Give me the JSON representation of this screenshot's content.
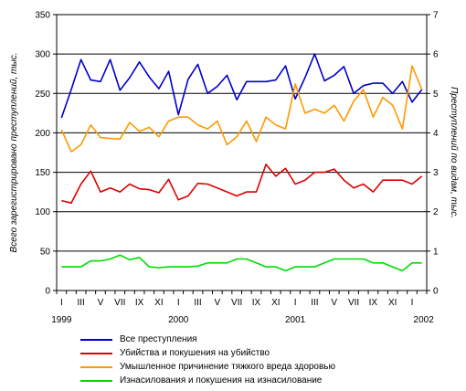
{
  "chart_data": {
    "type": "line",
    "left_axis": {
      "label": "Всего зарегистрировано преступлений, тыс.",
      "ylim": [
        0,
        350
      ],
      "ticks": [
        0,
        50,
        100,
        150,
        200,
        250,
        300,
        350
      ]
    },
    "right_axis": {
      "label": "Преступлений по видам, тыс.",
      "ylim": [
        0,
        7
      ],
      "ticks": [
        0,
        1,
        2,
        3,
        4,
        5,
        6,
        7
      ]
    },
    "x_month_labels": [
      "I",
      "",
      "III",
      "",
      "V",
      "",
      "VII",
      "",
      "IX",
      "",
      "XI",
      "",
      "I",
      "",
      "III",
      "",
      "V",
      "",
      "VII",
      "",
      "IX",
      "",
      "XI",
      "",
      "I",
      "",
      "III",
      "",
      "V",
      "",
      "VII",
      "",
      "IX",
      "",
      "XI",
      "",
      "I",
      ""
    ],
    "x_year_labels": [
      {
        "index": 0,
        "text": "1999"
      },
      {
        "index": 12,
        "text": "2000"
      },
      {
        "index": 24,
        "text": "2001"
      },
      {
        "index": 37,
        "text": "2002"
      }
    ],
    "grid": true,
    "series": [
      {
        "name": "Все преступления",
        "axis": "left",
        "color": "#0000cc",
        "values": [
          219,
          255,
          293,
          267,
          265,
          293,
          254,
          270,
          290,
          271,
          256,
          278,
          223,
          268,
          287,
          250,
          259,
          273,
          242,
          265,
          265,
          265,
          267,
          285,
          243,
          270,
          300,
          266,
          273,
          284,
          250,
          260,
          263,
          263,
          250,
          265,
          239,
          255
        ]
      },
      {
        "name": "Убийства и покушения на убийство",
        "axis": "right",
        "color": "#dd0000",
        "values": [
          2.28,
          2.22,
          2.7,
          3.03,
          2.5,
          2.6,
          2.5,
          2.7,
          2.58,
          2.56,
          2.48,
          2.82,
          2.3,
          2.4,
          2.72,
          2.7,
          2.6,
          2.5,
          2.4,
          2.5,
          2.5,
          3.2,
          2.9,
          3.1,
          2.7,
          2.8,
          3.0,
          3.0,
          3.08,
          2.8,
          2.6,
          2.7,
          2.5,
          2.8,
          2.8,
          2.8,
          2.7,
          2.9
        ]
      },
      {
        "name": "Умышленное причинение тяжкого вреда здоровью",
        "axis": "right",
        "color": "#ff9900",
        "values": [
          4.08,
          3.52,
          3.7,
          4.2,
          3.88,
          3.86,
          3.84,
          4.26,
          4.04,
          4.14,
          3.9,
          4.3,
          4.4,
          4.4,
          4.2,
          4.1,
          4.3,
          3.7,
          3.9,
          4.3,
          3.78,
          4.4,
          4.2,
          4.1,
          5.24,
          4.5,
          4.6,
          4.5,
          4.7,
          4.3,
          4.8,
          5.1,
          4.4,
          4.9,
          4.7,
          4.1,
          5.7,
          5.1
        ]
      },
      {
        "name": "Изнасилования и покушения на изнасилование",
        "axis": "right",
        "color": "#00dd00",
        "values": [
          0.6,
          0.6,
          0.6,
          0.75,
          0.75,
          0.8,
          0.9,
          0.78,
          0.84,
          0.6,
          0.58,
          0.6,
          0.6,
          0.6,
          0.62,
          0.7,
          0.7,
          0.7,
          0.8,
          0.8,
          0.7,
          0.6,
          0.6,
          0.5,
          0.6,
          0.6,
          0.6,
          0.7,
          0.8,
          0.8,
          0.8,
          0.8,
          0.7,
          0.7,
          0.6,
          0.5,
          0.7,
          0.7
        ]
      }
    ]
  }
}
